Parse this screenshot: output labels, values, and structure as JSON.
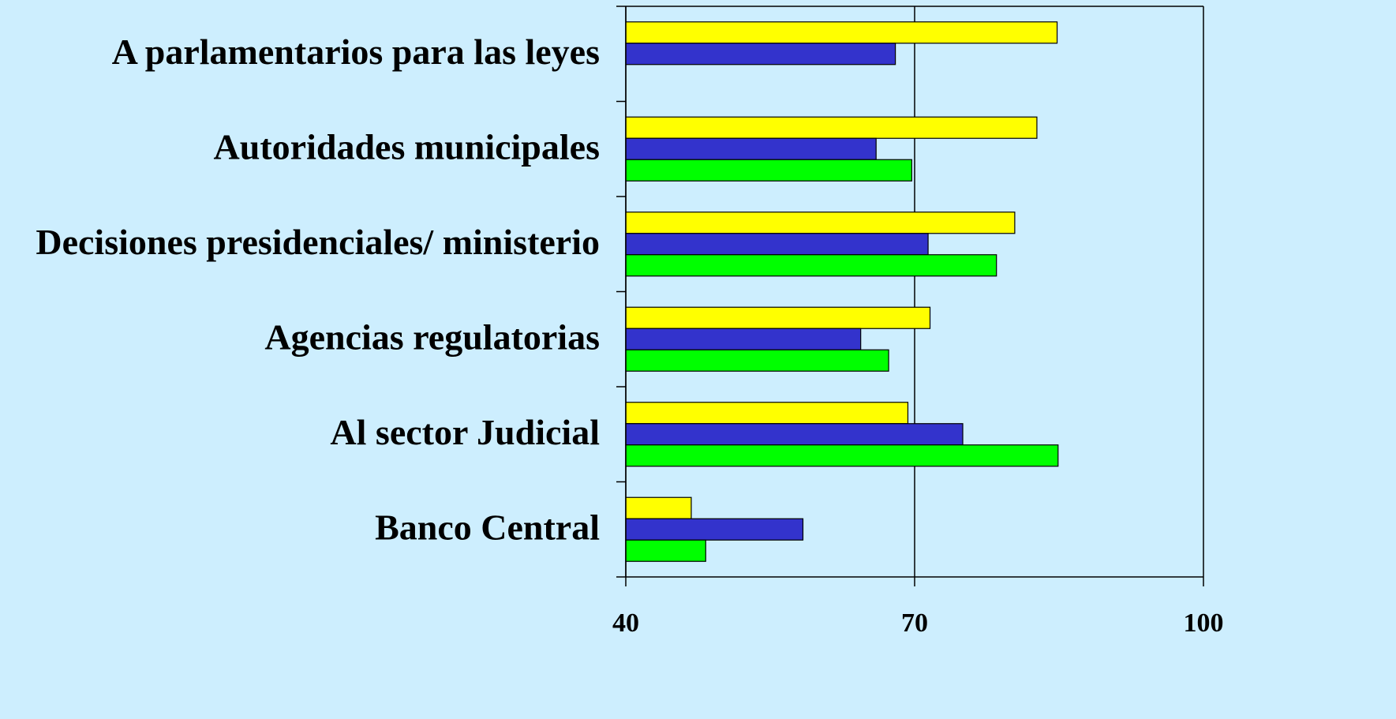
{
  "chart_data": {
    "type": "bar",
    "orientation": "horizontal",
    "categories": [
      "A parlamentarios para las leyes",
      "Autoridades municipales",
      "Decisiones presidenciales/ ministerio",
      "Agencias regulatorias",
      "Al sector Judicial",
      "Banco Central"
    ],
    "series": [
      {
        "color": "#ffff00",
        "values": [
          84.8,
          82.7,
          80.4,
          71.6,
          69.3,
          46.8
        ]
      },
      {
        "color": "#3333cc",
        "values": [
          68.0,
          66.0,
          71.4,
          64.4,
          75.0,
          58.4
        ]
      },
      {
        "color": "#00ff00",
        "values": [
          null,
          69.7,
          78.5,
          67.3,
          84.9,
          48.3
        ]
      }
    ],
    "xlim": [
      40,
      100
    ],
    "xticks": [
      40,
      70,
      100
    ],
    "grid": true
  }
}
